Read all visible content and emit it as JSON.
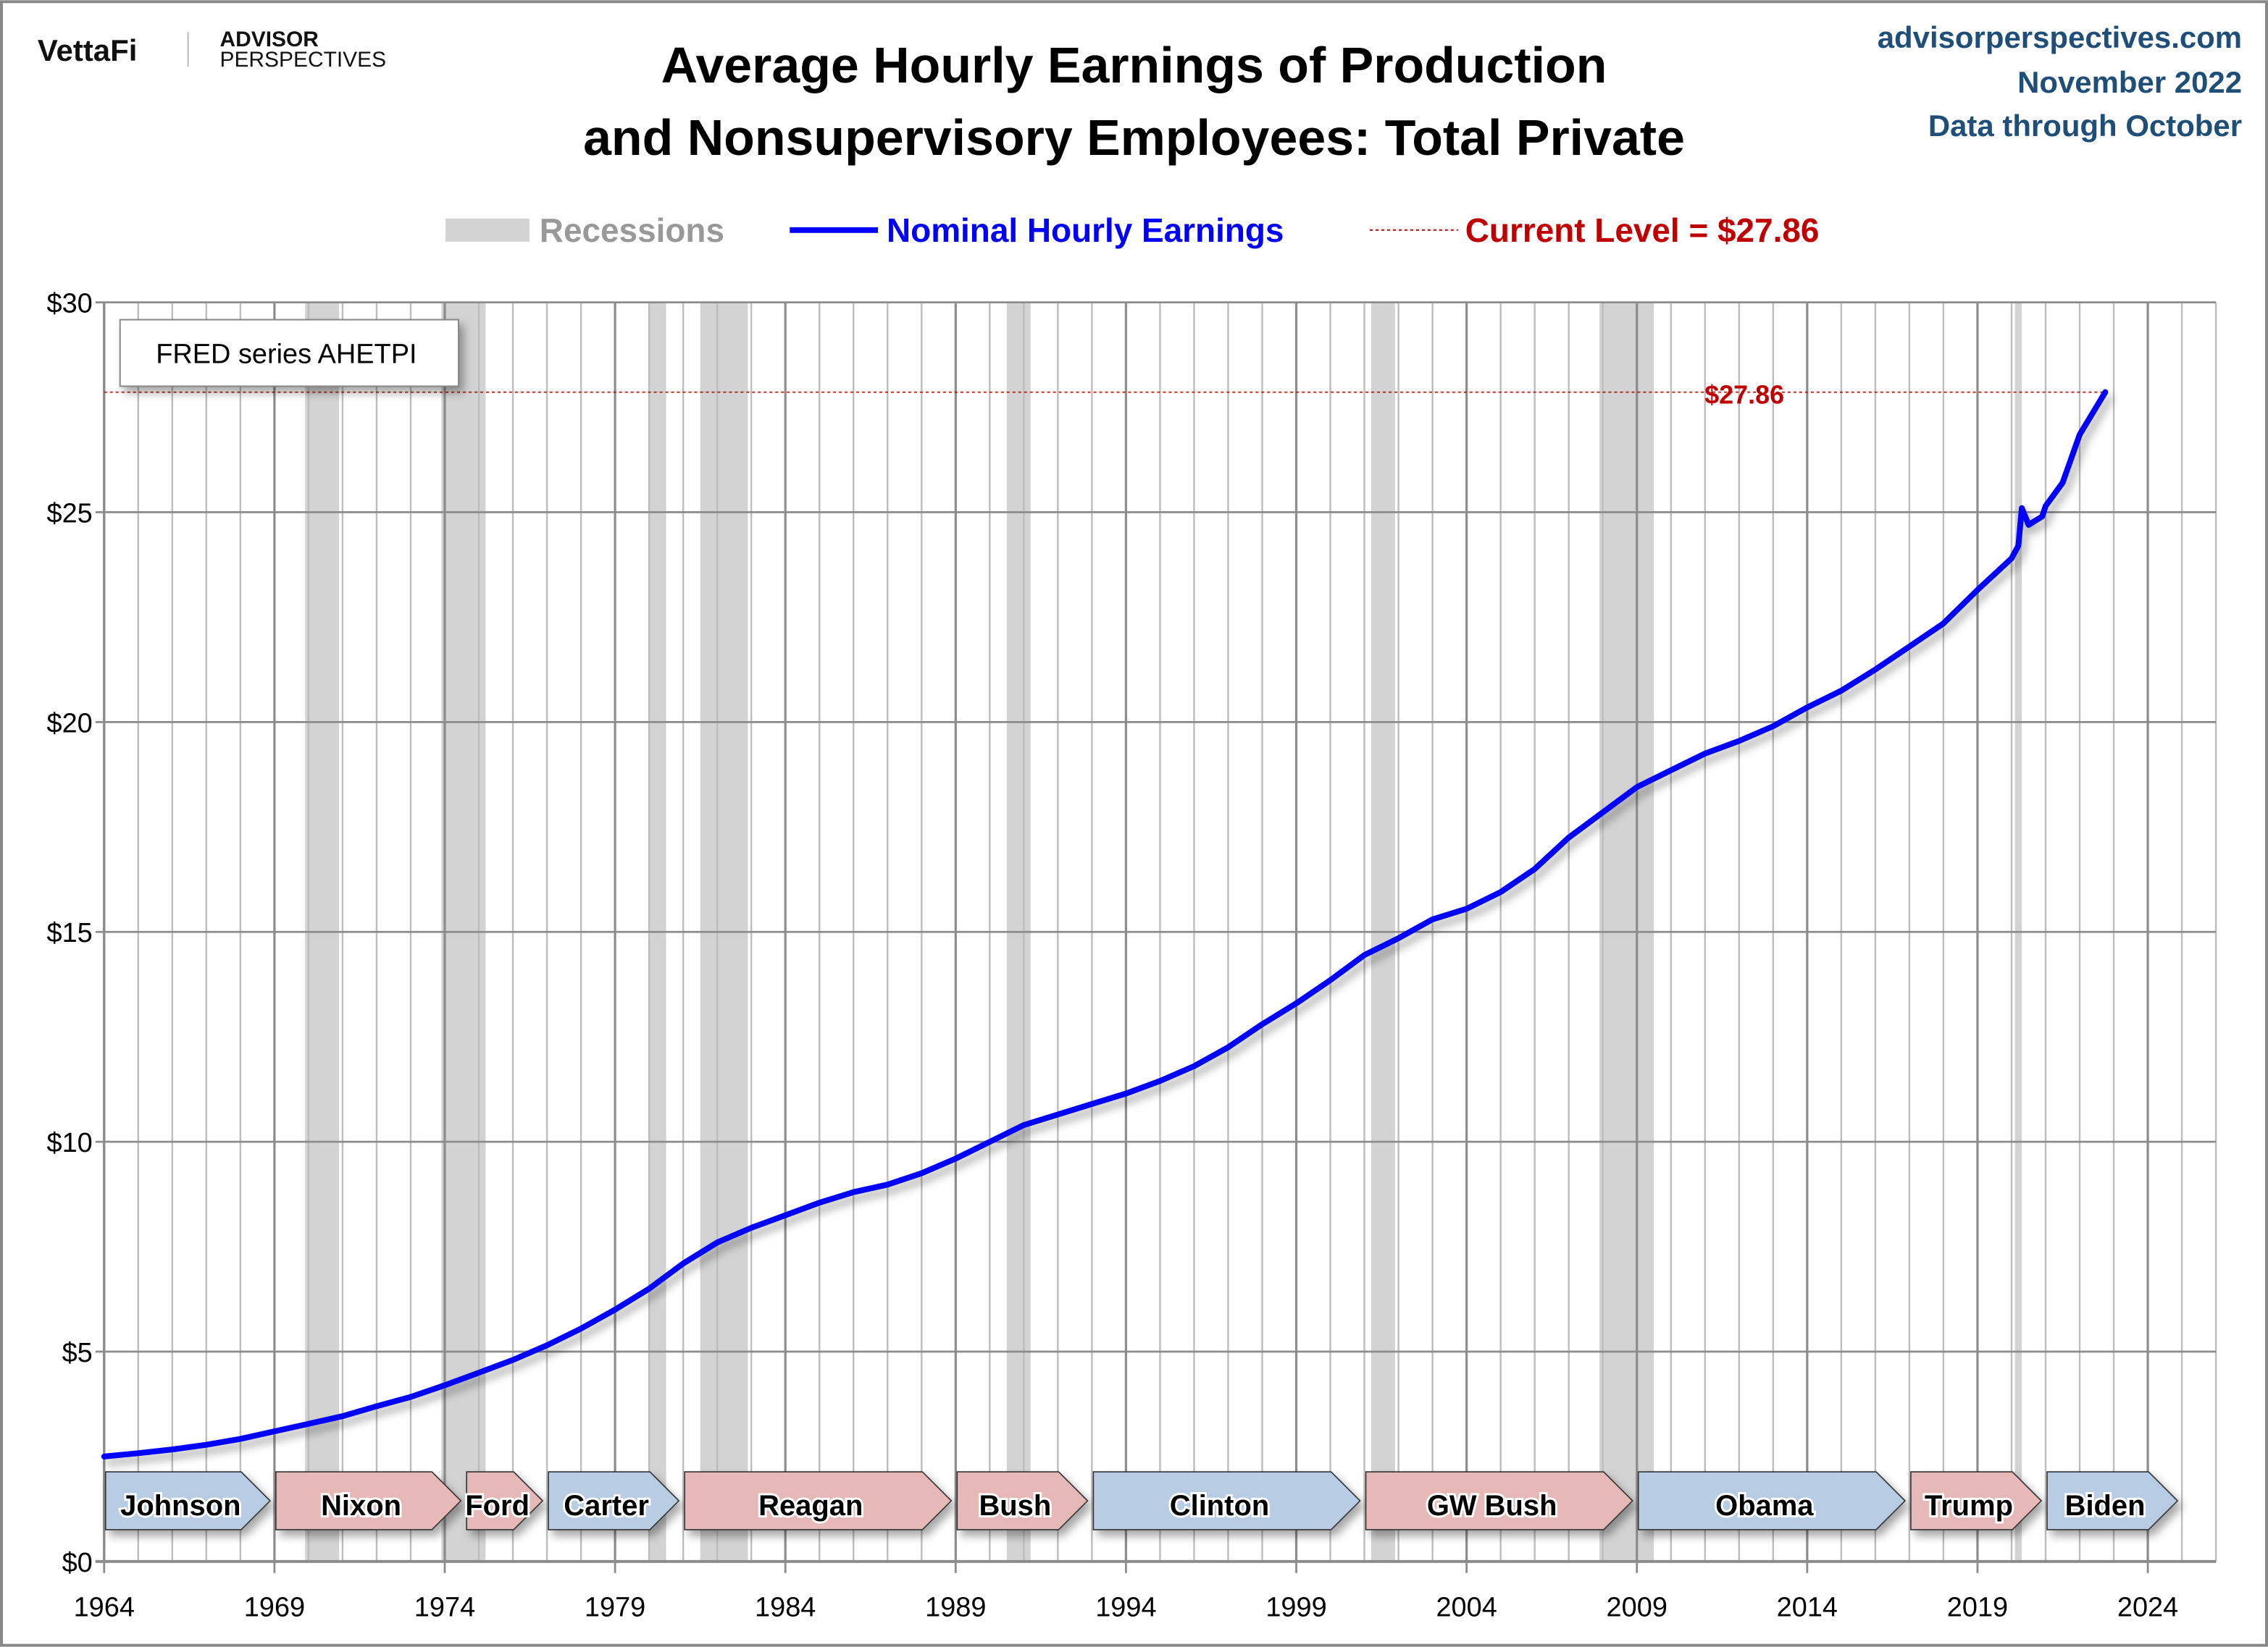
{
  "header": {
    "logo_left": "VettaFi",
    "logo_right_top": "ADVISOR",
    "logo_right_bottom": "PERSPECTIVES",
    "source": "advisorperspectives.com",
    "date": "November 2022",
    "data_through": "Data through October"
  },
  "chart_data": {
    "type": "line",
    "title_line1": "Average Hourly Earnings of Production",
    "title_line2": "and Nonsupervisory Employees: Total Private",
    "legend": {
      "recessions": "Recessions",
      "series": "Nominal Hourly Earnings",
      "current": "Current Level = $27.86",
      "placement": "top"
    },
    "annotation_box": "FRED series AHETPI",
    "current_label": "$27.86",
    "current_value": 27.86,
    "xlim": [
      1964,
      2026
    ],
    "ylim": [
      0,
      30
    ],
    "x_ticks": [
      "1964",
      "1969",
      "1974",
      "1979",
      "1984",
      "1989",
      "1994",
      "1999",
      "2004",
      "2009",
      "2014",
      "2019",
      "2024"
    ],
    "y_ticks": [
      "$0",
      "$5",
      "$10",
      "$15",
      "$20",
      "$25",
      "$30"
    ],
    "colors": {
      "series": "#0000ff",
      "current": "#c00000",
      "recession": "#d3d3d3",
      "dem": "#b8cce4",
      "rep": "#e6b9b8"
    },
    "series": [
      {
        "name": "Nominal Hourly Earnings",
        "x": [
          1964,
          1965,
          1966,
          1967,
          1968,
          1969,
          1970,
          1971,
          1972,
          1973,
          1974,
          1975,
          1976,
          1977,
          1978,
          1979,
          1980,
          1981,
          1982,
          1983,
          1984,
          1985,
          1986,
          1987,
          1988,
          1989,
          1990,
          1991,
          1992,
          1993,
          1994,
          1995,
          1996,
          1997,
          1998,
          1999,
          2000,
          2001,
          2002,
          2003,
          2004,
          2005,
          2006,
          2007,
          2008,
          2009,
          2010,
          2011,
          2012,
          2013,
          2014,
          2015,
          2016,
          2017,
          2018,
          2019,
          2020.0,
          2020.2,
          2020.3,
          2020.5,
          2020.9,
          2021.0,
          2021.5,
          2022.0,
          2022.75
        ],
        "y": [
          2.5,
          2.58,
          2.67,
          2.78,
          2.92,
          3.1,
          3.28,
          3.46,
          3.7,
          3.92,
          4.2,
          4.5,
          4.8,
          5.15,
          5.55,
          6.0,
          6.5,
          7.1,
          7.6,
          7.95,
          8.25,
          8.55,
          8.8,
          8.98,
          9.25,
          9.6,
          10.0,
          10.4,
          10.65,
          10.9,
          11.15,
          11.45,
          11.8,
          12.25,
          12.8,
          13.3,
          13.85,
          14.45,
          14.85,
          15.3,
          15.55,
          15.95,
          16.5,
          17.25,
          17.85,
          18.45,
          18.85,
          19.25,
          19.55,
          19.9,
          20.35,
          20.75,
          21.25,
          21.8,
          22.35,
          23.15,
          23.9,
          24.2,
          25.1,
          24.7,
          24.9,
          25.15,
          25.7,
          26.85,
          27.86
        ]
      }
    ],
    "recessions": [
      [
        1969.9,
        1970.9
      ],
      [
        1973.9,
        1975.2
      ],
      [
        1980.0,
        1980.5
      ],
      [
        1981.5,
        1982.9
      ],
      [
        1990.5,
        1991.2
      ],
      [
        2001.2,
        2001.9
      ],
      [
        2007.9,
        2009.5
      ],
      [
        2020.1,
        2020.3
      ]
    ],
    "presidents": [
      {
        "name": "Johnson",
        "start": 1964,
        "end": 1969,
        "party": "dem"
      },
      {
        "name": "Nixon",
        "start": 1969,
        "end": 1974.6,
        "party": "rep"
      },
      {
        "name": "Ford",
        "start": 1974.6,
        "end": 1977,
        "party": "rep"
      },
      {
        "name": "Carter",
        "start": 1977,
        "end": 1981,
        "party": "dem"
      },
      {
        "name": "Reagan",
        "start": 1981,
        "end": 1989,
        "party": "rep"
      },
      {
        "name": "Bush",
        "start": 1989,
        "end": 1993,
        "party": "rep"
      },
      {
        "name": "Clinton",
        "start": 1993,
        "end": 2001,
        "party": "dem"
      },
      {
        "name": "GW Bush",
        "start": 2001,
        "end": 2009,
        "party": "rep"
      },
      {
        "name": "Obama",
        "start": 2009,
        "end": 2017,
        "party": "dem"
      },
      {
        "name": "Trump",
        "start": 2017,
        "end": 2021,
        "party": "rep"
      },
      {
        "name": "Biden",
        "start": 2021,
        "end": 2025,
        "party": "dem"
      }
    ]
  }
}
